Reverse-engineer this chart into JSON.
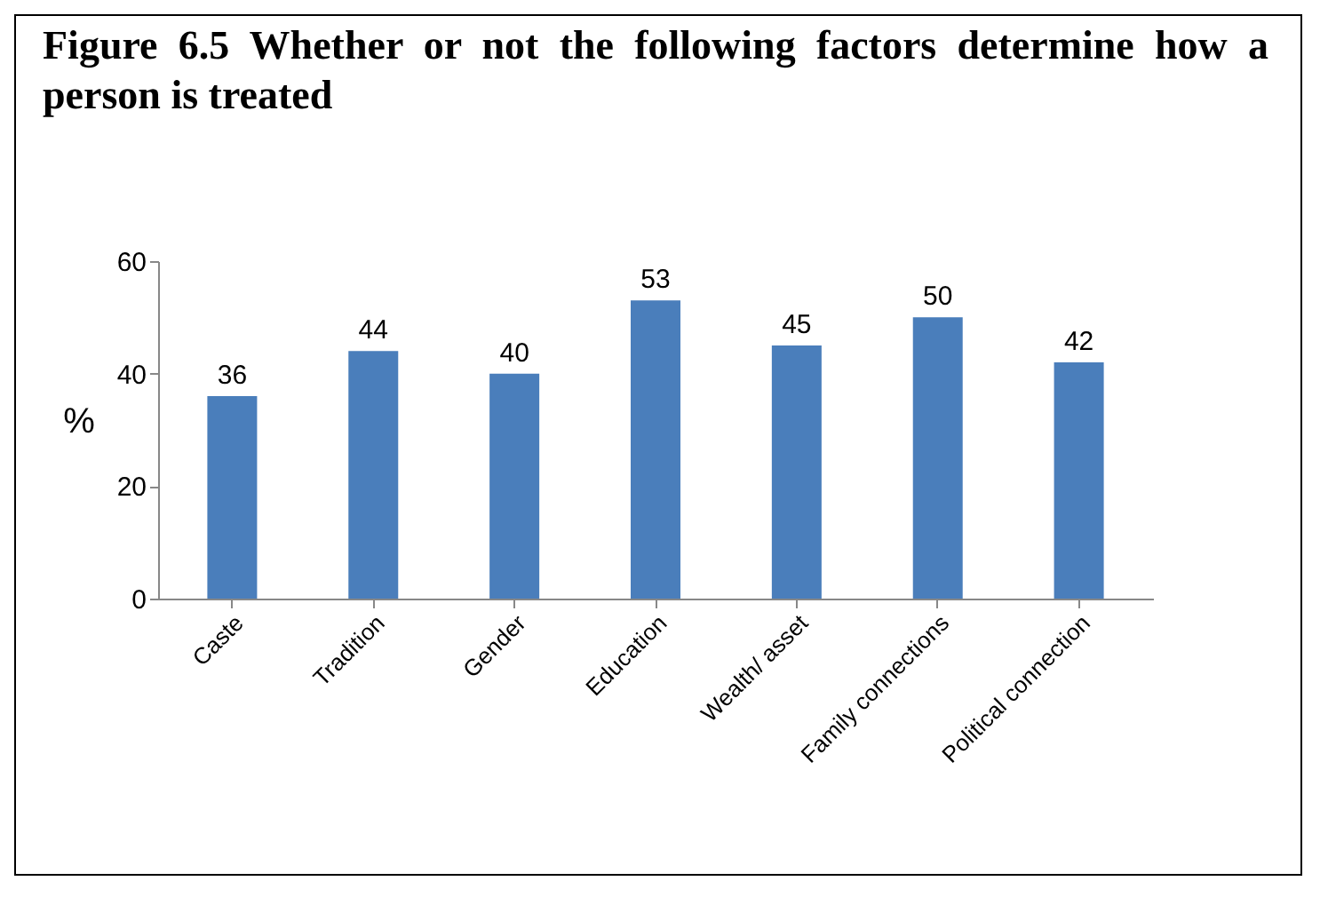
{
  "chart_data": {
    "type": "bar",
    "title": "Figure 6.5 Whether or not the following factors determine how a person is treated",
    "ylabel": "%",
    "categories": [
      "Caste",
      "Tradition",
      "Gender",
      "Education",
      "Wealth/ asset",
      "Family connections",
      "Political connection"
    ],
    "values": [
      36,
      44,
      40,
      53,
      45,
      50,
      42
    ],
    "color": "#4a7ebb",
    "ylim": [
      0,
      60
    ],
    "yticks": [
      0,
      20,
      40,
      60
    ],
    "data_labels": true
  }
}
